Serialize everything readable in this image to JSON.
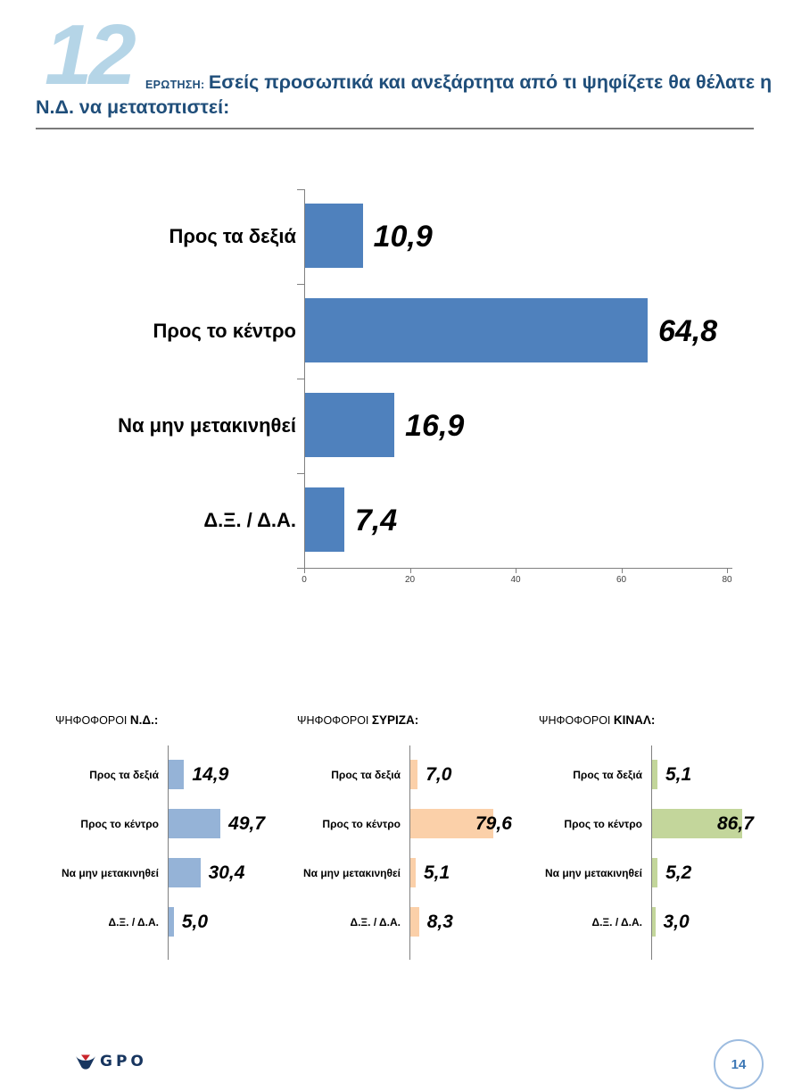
{
  "header": {
    "question_number": "12",
    "question_label": "ΕΡΩΤΗΣΗ:",
    "question_line1": "Εσείς προσωπικά και ανεξάρτητα από τι ψηφίζετε θα θέλατε η",
    "question_line2": "Ν.Δ. να μετατοπιστεί:"
  },
  "chart_data": [
    {
      "id": "main",
      "type": "bar",
      "orientation": "horizontal",
      "title": "",
      "categories": [
        "Προς τα δεξιά",
        "Προς το κέντρο",
        "Να μην μετακινηθεί",
        "Δ.Ξ. / Δ.Α."
      ],
      "values": [
        10.9,
        64.8,
        16.9,
        7.4
      ],
      "value_labels": [
        "10,9",
        "64,8",
        "16,9",
        "7,4"
      ],
      "bar_color": "#4f81bd",
      "xlim": [
        0,
        80
      ],
      "x_ticks": [
        "0",
        "20",
        "40",
        "60",
        "80"
      ],
      "grid": false,
      "legend": "none"
    },
    {
      "id": "nd-voters",
      "type": "bar",
      "orientation": "horizontal",
      "title_prefix": "ΨΗΦΟΦΟΡΟΙ",
      "title_group": "Ν.Δ.:",
      "categories": [
        "Προς τα δεξιά",
        "Προς το κέντρο",
        "Να μην μετακινηθεί",
        "Δ.Ξ. / Δ.Α."
      ],
      "values": [
        14.9,
        49.7,
        30.4,
        5.0
      ],
      "value_labels": [
        "14,9",
        "49,7",
        "30,4",
        "5,0"
      ],
      "bar_color": "#95b3d7",
      "xlim": [
        0,
        100
      ],
      "grid": false,
      "legend": "none"
    },
    {
      "id": "syriza-voters",
      "type": "bar",
      "orientation": "horizontal",
      "title_prefix": "ΨΗΦΟΦΟΡΟΙ",
      "title_group": "ΣΥΡΙΖΑ:",
      "categories": [
        "Προς τα δεξιά",
        "Προς το κέντρο",
        "Να μην μετακινηθεί",
        "Δ.Ξ. / Δ.Α."
      ],
      "values": [
        7.0,
        79.6,
        5.1,
        8.3
      ],
      "value_labels": [
        "7,0",
        "79,6",
        "5,1",
        "8,3"
      ],
      "bar_color": "#fbd0a9",
      "xlim": [
        0,
        100
      ],
      "grid": false,
      "legend": "none"
    },
    {
      "id": "kinal-voters",
      "type": "bar",
      "orientation": "horizontal",
      "title_prefix": "ΨΗΦΟΦΟΡΟΙ",
      "title_group": "ΚΙΝΑΛ:",
      "categories": [
        "Προς τα δεξιά",
        "Προς το κέντρο",
        "Να μην μετακινηθεί",
        "Δ.Ξ. / Δ.Α."
      ],
      "values": [
        5.1,
        86.7,
        5.2,
        3.0
      ],
      "value_labels": [
        "5,1",
        "86,7",
        "5,2",
        "3,0"
      ],
      "bar_color": "#c3d69b",
      "xlim": [
        0,
        100
      ],
      "grid": false,
      "legend": "none"
    }
  ],
  "colors": {
    "title_blue": "#1f4e7a",
    "big_number_blue": "#b5d5e7",
    "main_bar": "#4f81bd",
    "nd_bar": "#95b3d7",
    "syriza_bar": "#fbd0a9",
    "kinal_bar": "#c3d69b",
    "axis_gray": "#808080"
  },
  "footer": {
    "logo_text": "GPO",
    "page_number": "14"
  }
}
